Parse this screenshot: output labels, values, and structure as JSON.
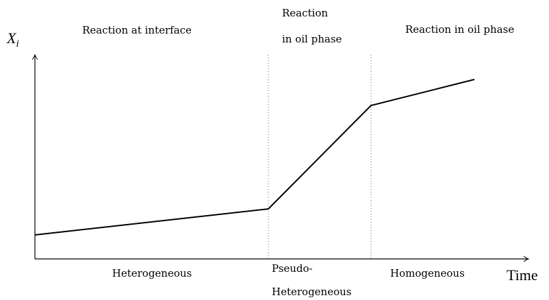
{
  "axes": {
    "y_label": {
      "symbol": "X",
      "subscript": "i"
    },
    "x_label": "Time"
  },
  "regions": [
    {
      "top": [
        "Reaction at interface"
      ],
      "bottom": [
        "Heterogeneous"
      ]
    },
    {
      "top": [
        "Reaction",
        "in oil phase"
      ],
      "bottom": [
        "Pseudo-",
        "Heterogeneous"
      ]
    },
    {
      "top": [
        "Reaction in oil phase"
      ],
      "bottom": [
        "Homogeneous"
      ]
    }
  ]
}
